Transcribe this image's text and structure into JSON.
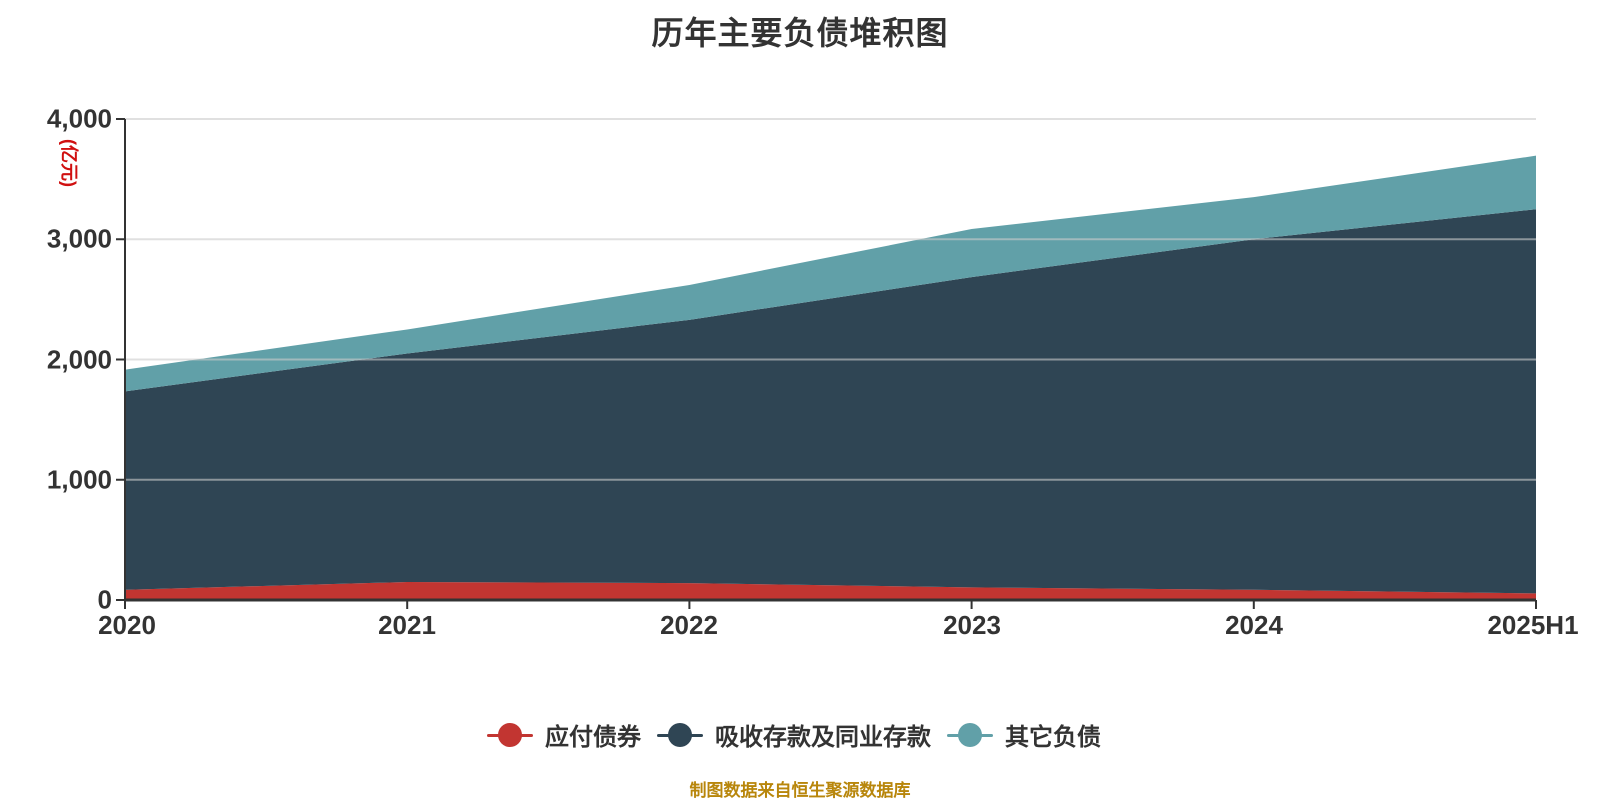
{
  "title": "历年主要负债堆积图",
  "y_axis": {
    "unit_label": "(亿元)",
    "ticks": [
      "4,000",
      "3,000",
      "2,000",
      "1,000",
      "0"
    ]
  },
  "x_axis": {
    "labels": [
      "2020",
      "2021",
      "2022",
      "2023",
      "2024",
      "2025H1"
    ]
  },
  "legend": {
    "items": [
      {
        "label": "应付债券",
        "color": "#c23531"
      },
      {
        "label": "吸收存款及同业存款",
        "color": "#2f4554"
      },
      {
        "label": "其它负债",
        "color": "#61a0a8"
      }
    ]
  },
  "footer": {
    "text": "制图数据来自恒生聚源数据库",
    "color": "#b8860b"
  },
  "colors": {
    "title": "#333333",
    "axis_label": "#333333",
    "axis_line": "#333333",
    "gridline": "#cccccc",
    "unit_label": "#d01010",
    "background": "#ffffff"
  },
  "chart_data": {
    "type": "area",
    "stacked": true,
    "title": "历年主要负债堆积图",
    "ylabel": "(亿元)",
    "xlabel": "",
    "categories": [
      "2020",
      "2021",
      "2022",
      "2023",
      "2024",
      "2025H1"
    ],
    "series": [
      {
        "name": "应付债券",
        "color": "#c23531",
        "values": [
          85,
          150,
          140,
          105,
          85,
          55
        ]
      },
      {
        "name": "吸收存款及同业存款",
        "color": "#2f4554",
        "values": [
          1650,
          1900,
          2190,
          2580,
          2915,
          3195
        ]
      },
      {
        "name": "其它负债",
        "color": "#61a0a8",
        "values": [
          180,
          200,
          290,
          400,
          350,
          445
        ]
      }
    ],
    "stacked_totals": [
      1915,
      2250,
      2620,
      3085,
      3350,
      3695
    ],
    "ylim": [
      0,
      4000
    ],
    "grid": true,
    "legend_position": "bottom"
  }
}
